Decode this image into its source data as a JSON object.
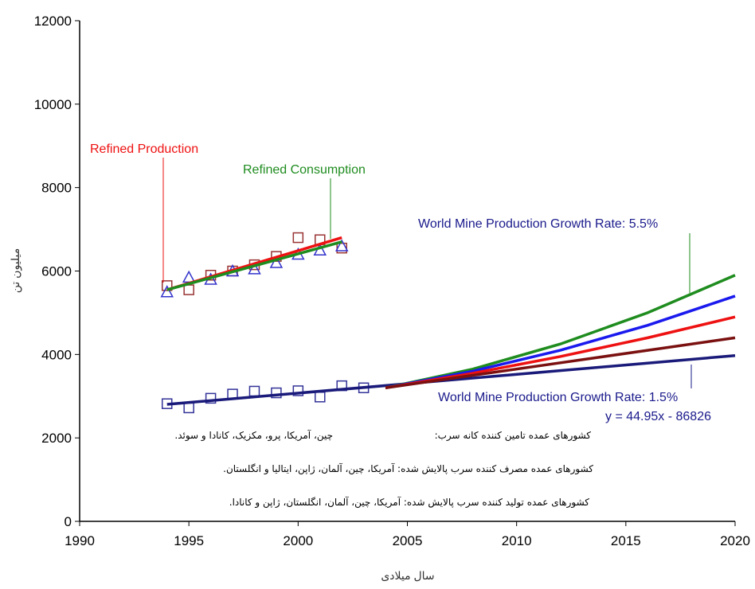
{
  "chart_data": {
    "type": "line",
    "xlabel": "سال میلادی",
    "ylabel": "میلیون تن",
    "xlim": [
      1990,
      2020
    ],
    "ylim": [
      0,
      12000
    ],
    "xticks": [
      1990,
      1995,
      2000,
      2005,
      2010,
      2015,
      2020
    ],
    "yticks": [
      0,
      2000,
      4000,
      6000,
      8000,
      10000,
      12000
    ],
    "grid": false,
    "annotations": [
      {
        "text": "Refined Production",
        "color": "#ee1111"
      },
      {
        "text": "Refined Consumption",
        "color": "#1e8c1e"
      },
      {
        "text": "World Mine Production Growth Rate: 5.5%",
        "color": "#1a1a8c"
      },
      {
        "text": "World Mine Production Growth Rate: 1.5%",
        "color": "#1a1a8c"
      },
      {
        "text": "y = 44.95x - 86826",
        "color": "#1a1a8c"
      }
    ],
    "notes": [
      "کشورهای عمده تامین کننده کانه سرب:",
      "چین، آمریکا، پرو، مکزیک، کانادا و سوئد.",
      "کشورهای عمده مصرف کننده سرب پالایش شده: آمریکا، چین، آلمان، ژاپن، ایتالیا و انگلستان.",
      "کشورهای عمده تولید کننده سرب پالایش شده: آمریکا، چین، آلمان، انگلستان، ژاپن و کانادا."
    ],
    "series": [
      {
        "marker": "square",
        "color": "#993333",
        "x": [
          1994,
          1995,
          1996,
          1997,
          1998,
          1999,
          2000,
          2001,
          2002
        ],
        "values": [
          5650,
          5550,
          5900,
          6000,
          6150,
          6350,
          6800,
          6750,
          6550
        ]
      },
      {
        "marker": "triangle",
        "color": "#3333cc",
        "x": [
          1994,
          1995,
          1996,
          1997,
          1998,
          1999,
          2000,
          2001,
          2002
        ],
        "values": [
          5500,
          5850,
          5800,
          6000,
          6050,
          6200,
          6400,
          6500,
          6600
        ]
      },
      {
        "marker": "line",
        "color": "#ee1111",
        "x": [
          1994,
          2002
        ],
        "values": [
          5550,
          6800
        ]
      },
      {
        "marker": "line",
        "color": "#1e8c1e",
        "x": [
          1994,
          2002
        ],
        "values": [
          5550,
          6700
        ]
      },
      {
        "marker": "square",
        "color": "#333399",
        "x": [
          1994,
          1995,
          1996,
          1997,
          1998,
          1999,
          2000,
          2001,
          2002,
          2003
        ],
        "values": [
          2820,
          2720,
          2950,
          3050,
          3120,
          3080,
          3130,
          2980,
          3250,
          3200
        ]
      },
      {
        "marker": "line",
        "color": "#1a1a7a",
        "x": [
          1994,
          2020
        ],
        "values": [
          2804,
          3973
        ]
      },
      {
        "marker": "line",
        "color": "#1e8c1e",
        "x": [
          2004,
          2008,
          2012,
          2016,
          2020
        ],
        "values": [
          3200,
          3650,
          4250,
          5000,
          5900
        ]
      },
      {
        "marker": "line",
        "color": "#1a1aee",
        "x": [
          2004,
          2008,
          2012,
          2016,
          2020
        ],
        "values": [
          3200,
          3600,
          4100,
          4700,
          5400
        ]
      },
      {
        "marker": "line",
        "color": "#ee1111",
        "x": [
          2004,
          2008,
          2012,
          2016,
          2020
        ],
        "values": [
          3200,
          3550,
          3950,
          4400,
          4900
        ]
      },
      {
        "marker": "line",
        "color": "#7a1010",
        "x": [
          2004,
          2008,
          2012,
          2016,
          2020
        ],
        "values": [
          3200,
          3500,
          3800,
          4100,
          4400
        ]
      }
    ]
  }
}
